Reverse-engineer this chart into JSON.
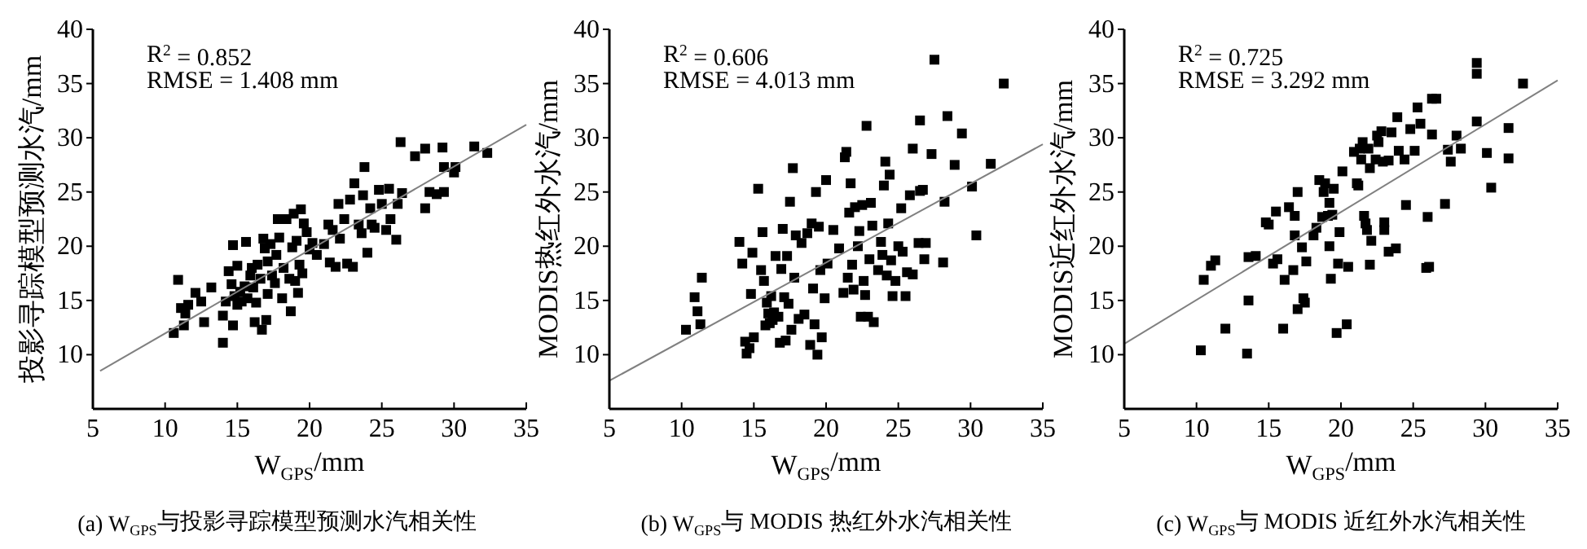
{
  "chart_data": [
    {
      "type": "scatter",
      "xlabel": "W$_{GPS}$/mm",
      "ylabel": "投影寻踪模型预测水汽/mm",
      "xlim": [
        5,
        35
      ],
      "ylim": [
        5,
        40
      ],
      "xticks": [
        5,
        10,
        15,
        20,
        25,
        30,
        35
      ],
      "yticks": [
        10,
        15,
        20,
        25,
        30,
        35,
        40
      ],
      "annotations": [
        "R$^{2}$ = 0.852",
        "RMSE = 1.408 mm",
        "(a) W$_{GPS}$与投影寻踪模型预测水汽相关性"
      ],
      "series": [
        {
          "marker": "square",
          "color": "#000000",
          "x": [
            10.6,
            10.9,
            11.1,
            11.3,
            11.4,
            11.6,
            12.1,
            12.5,
            12.7,
            13.2,
            14.0,
            14.0,
            14.2,
            14.4,
            14.6,
            14.7,
            14.7,
            14.8,
            15.0,
            15.0,
            15.2,
            15.3,
            15.5,
            15.6,
            15.7,
            15.9,
            16.0,
            16.1,
            16.2,
            16.3,
            16.4,
            16.6,
            16.7,
            16.8,
            16.9,
            17.0,
            17.1,
            17.1,
            17.3,
            17.4,
            17.6,
            17.7,
            17.8,
            17.9,
            18.1,
            18.2,
            18.4,
            18.6,
            18.7,
            18.8,
            18.9,
            19.0,
            19.1,
            19.2,
            19.3,
            19.4,
            19.5,
            19.6,
            19.8,
            20.0,
            20.2,
            20.5,
            21.0,
            21.3,
            21.4,
            21.6,
            21.8,
            22.0,
            22.1,
            22.4,
            22.6,
            22.8,
            23.0,
            23.1,
            23.4,
            23.6,
            23.7,
            23.8,
            24.0,
            24.2,
            24.3,
            24.5,
            24.8,
            25.0,
            25.3,
            25.5,
            25.6,
            26.0,
            26.1,
            26.3,
            26.4,
            27.3,
            28.0,
            28.0,
            28.3,
            28.8,
            29.2,
            29.3,
            29.3,
            30.0,
            30.1,
            31.4,
            32.3
          ],
          "values": [
            12.0,
            16.9,
            14.3,
            12.7,
            13.8,
            14.6,
            15.7,
            14.9,
            13.0,
            16.2,
            11.1,
            13.6,
            14.9,
            17.7,
            16.5,
            20.1,
            12.7,
            15.4,
            14.6,
            18.2,
            15.8,
            14.9,
            16.3,
            20.4,
            15.2,
            17.3,
            18.0,
            16.2,
            13.0,
            14.8,
            18.3,
            17.0,
            12.3,
            20.7,
            19.8,
            13.2,
            15.6,
            18.6,
            20.2,
            17.3,
            16.6,
            19.2,
            22.5,
            20.8,
            15.2,
            18.0,
            22.5,
            17.0,
            14.0,
            19.9,
            23.0,
            16.8,
            20.5,
            15.7,
            18.3,
            23.4,
            17.5,
            22.1,
            21.3,
            19.7,
            20.3,
            19.2,
            20.2,
            22.0,
            18.5,
            21.5,
            18.1,
            23.9,
            20.7,
            22.5,
            18.4,
            24.3,
            18.1,
            25.8,
            22.0,
            21.2,
            24.7,
            27.3,
            19.4,
            23.5,
            22.0,
            21.7,
            25.2,
            23.9,
            21.5,
            25.3,
            22.5,
            20.6,
            23.9,
            29.6,
            24.9,
            28.3,
            23.5,
            29.0,
            25.0,
            24.8,
            29.1,
            27.3,
            25.0,
            26.8,
            27.3,
            29.2,
            28.6
          ]
        },
        {
          "type": "line",
          "color": "#808080",
          "x": [
            5.5,
            35
          ],
          "values": [
            8.5,
            31.2
          ]
        }
      ]
    },
    {
      "type": "scatter",
      "xlabel": "W$_{GPS}$/mm",
      "ylabel": "MODIS热红外水汽/mm",
      "xlim": [
        5,
        35
      ],
      "ylim": [
        5,
        40
      ],
      "xticks": [
        5,
        10,
        15,
        20,
        25,
        30,
        35
      ],
      "yticks": [
        10,
        15,
        20,
        25,
        30,
        35,
        40
      ],
      "annotations": [
        "R$^{2}$ = 0.606",
        "RMSE = 4.013 mm",
        "(b) W$_{GPS}$与 MODIS 热红外水汽相关性"
      ],
      "series": [
        {
          "marker": "square",
          "color": "#000000",
          "x": [
            10.3,
            10.9,
            11.1,
            11.3,
            11.4,
            14.0,
            14.2,
            14.4,
            14.5,
            14.7,
            14.8,
            14.9,
            15.0,
            15.3,
            15.5,
            15.6,
            15.7,
            15.8,
            15.9,
            16.0,
            16.1,
            16.2,
            16.3,
            16.4,
            16.5,
            16.7,
            16.8,
            16.9,
            17.0,
            17.1,
            17.2,
            17.3,
            17.4,
            17.5,
            17.6,
            17.7,
            17.8,
            17.9,
            18.1,
            18.3,
            18.5,
            18.7,
            18.9,
            19.0,
            19.1,
            19.2,
            19.3,
            19.4,
            19.5,
            19.6,
            19.7,
            19.9,
            20.0,
            20.1,
            20.5,
            20.9,
            21.2,
            21.3,
            21.4,
            21.5,
            21.6,
            21.7,
            21.8,
            21.9,
            22.0,
            22.2,
            22.3,
            22.4,
            22.5,
            22.6,
            22.7,
            22.8,
            22.9,
            23.0,
            23.1,
            23.2,
            23.3,
            23.6,
            23.8,
            23.9,
            24.0,
            24.1,
            24.2,
            24.3,
            24.4,
            24.5,
            24.6,
            24.8,
            25.0,
            25.2,
            25.3,
            25.5,
            25.6,
            25.8,
            26.0,
            26.0,
            26.4,
            26.5,
            26.5,
            26.7,
            26.8,
            26.9,
            27.3,
            27.5,
            28.1,
            28.2,
            28.4,
            28.9,
            29.4,
            30.1,
            30.4,
            31.4,
            32.3
          ],
          "values": [
            12.3,
            15.3,
            14.0,
            12.8,
            17.1,
            20.4,
            18.4,
            11.2,
            10.1,
            10.6,
            15.6,
            19.4,
            11.6,
            25.3,
            17.8,
            21.3,
            16.8,
            12.7,
            14.8,
            13.8,
            12.9,
            15.4,
            13.2,
            13.9,
            19.1,
            13.5,
            11.1,
            17.9,
            21.6,
            15.3,
            11.3,
            19.1,
            14.7,
            24.1,
            12.3,
            27.2,
            17.1,
            21.0,
            13.3,
            20.3,
            13.7,
            21.2,
            10.9,
            22.1,
            16.1,
            12.8,
            25.0,
            10.0,
            21.8,
            17.8,
            11.6,
            15.2,
            26.1,
            18.4,
            21.5,
            19.8,
            15.7,
            28.2,
            28.7,
            17.1,
            23.1,
            25.8,
            18.3,
            16.0,
            23.6,
            20.0,
            21.4,
            13.5,
            23.8,
            16.8,
            15.5,
            31.1,
            13.5,
            18.8,
            24.0,
            21.9,
            13.0,
            17.8,
            20.4,
            19.2,
            25.6,
            27.8,
            17.3,
            22.1,
            26.6,
            18.7,
            15.4,
            16.8,
            20.0,
            23.5,
            19.5,
            15.4,
            17.6,
            24.7,
            29.0,
            17.4,
            20.3,
            31.6,
            25.1,
            25.2,
            18.8,
            20.3,
            28.5,
            37.2,
            18.5,
            24.1,
            32.0,
            27.5,
            30.4,
            25.5,
            21.0,
            27.6,
            35.0
          ]
        },
        {
          "type": "line",
          "color": "#808080",
          "x": [
            5,
            35
          ],
          "values": [
            7.6,
            29.4
          ]
        }
      ]
    },
    {
      "type": "scatter",
      "xlabel": "W$_{GPS}$/mm",
      "ylabel": "MODIS近红外水汽/mm",
      "xlim": [
        5,
        35
      ],
      "ylim": [
        5,
        40
      ],
      "xticks": [
        5,
        10,
        15,
        20,
        25,
        30,
        35
      ],
      "yticks": [
        10,
        15,
        20,
        25,
        30,
        35,
        40
      ],
      "annotations": [
        "R$^{2}$ = 0.725",
        "RMSE = 3.292 mm",
        "(c) W$_{GPS}$与 MODIS 近红外水汽相关性"
      ],
      "series": [
        {
          "marker": "square",
          "color": "#000000",
          "x": [
            10.3,
            10.5,
            11.0,
            11.3,
            12.0,
            13.5,
            13.6,
            13.6,
            14.1,
            14.8,
            15.0,
            15.3,
            15.5,
            15.6,
            16.0,
            16.1,
            16.4,
            16.7,
            16.8,
            16.8,
            17.0,
            17.0,
            17.3,
            17.4,
            17.5,
            17.6,
            18.1,
            18.3,
            18.5,
            18.7,
            18.8,
            18.9,
            19.1,
            19.2,
            19.2,
            19.3,
            19.4,
            19.5,
            19.7,
            19.8,
            19.9,
            20.1,
            20.4,
            20.5,
            20.9,
            21.1,
            21.2,
            21.3,
            21.4,
            21.5,
            21.6,
            21.7,
            21.8,
            21.9,
            22.0,
            22.0,
            22.1,
            22.4,
            22.5,
            22.6,
            22.8,
            22.9,
            23.0,
            23.0,
            23.3,
            23.3,
            23.5,
            23.8,
            23.9,
            24.0,
            24.4,
            24.5,
            24.8,
            25.1,
            25.3,
            25.5,
            25.9,
            26.0,
            26.1,
            26.3,
            26.3,
            26.6,
            27.2,
            27.4,
            27.6,
            28.0,
            28.3,
            29.4,
            29.4,
            29.4,
            30.1,
            30.4,
            31.6,
            31.6,
            32.6
          ],
          "values": [
            10.4,
            16.9,
            18.2,
            18.7,
            12.4,
            10.1,
            19.0,
            15.0,
            19.1,
            22.2,
            22.0,
            18.4,
            23.2,
            18.8,
            12.4,
            16.9,
            23.6,
            17.8,
            21.0,
            22.8,
            14.2,
            25.0,
            19.9,
            15.2,
            14.8,
            18.6,
            21.0,
            21.7,
            26.1,
            22.7,
            25.0,
            25.8,
            22.8,
            20.0,
            24.0,
            17.0,
            22.9,
            25.3,
            12.0,
            18.4,
            21.3,
            26.9,
            12.8,
            18.1,
            28.7,
            25.8,
            25.6,
            29.0,
            28.0,
            29.6,
            22.8,
            22.1,
            21.5,
            29.0,
            27.2,
            18.3,
            20.5,
            28.0,
            30.2,
            29.6,
            30.6,
            27.8,
            22.2,
            21.5,
            27.9,
            19.5,
            30.5,
            19.8,
            31.9,
            28.8,
            28.0,
            23.8,
            30.8,
            28.8,
            32.8,
            31.3,
            18.0,
            22.7,
            18.1,
            30.3,
            33.6,
            33.6,
            23.9,
            28.9,
            27.8,
            30.2,
            29.0,
            36.9,
            35.9,
            31.5,
            28.6,
            25.4,
            28.1,
            30.9,
            35.0
          ]
        },
        {
          "type": "line",
          "color": "#808080",
          "x": [
            5,
            35
          ],
          "values": [
            11.0,
            35.3
          ]
        }
      ]
    }
  ]
}
